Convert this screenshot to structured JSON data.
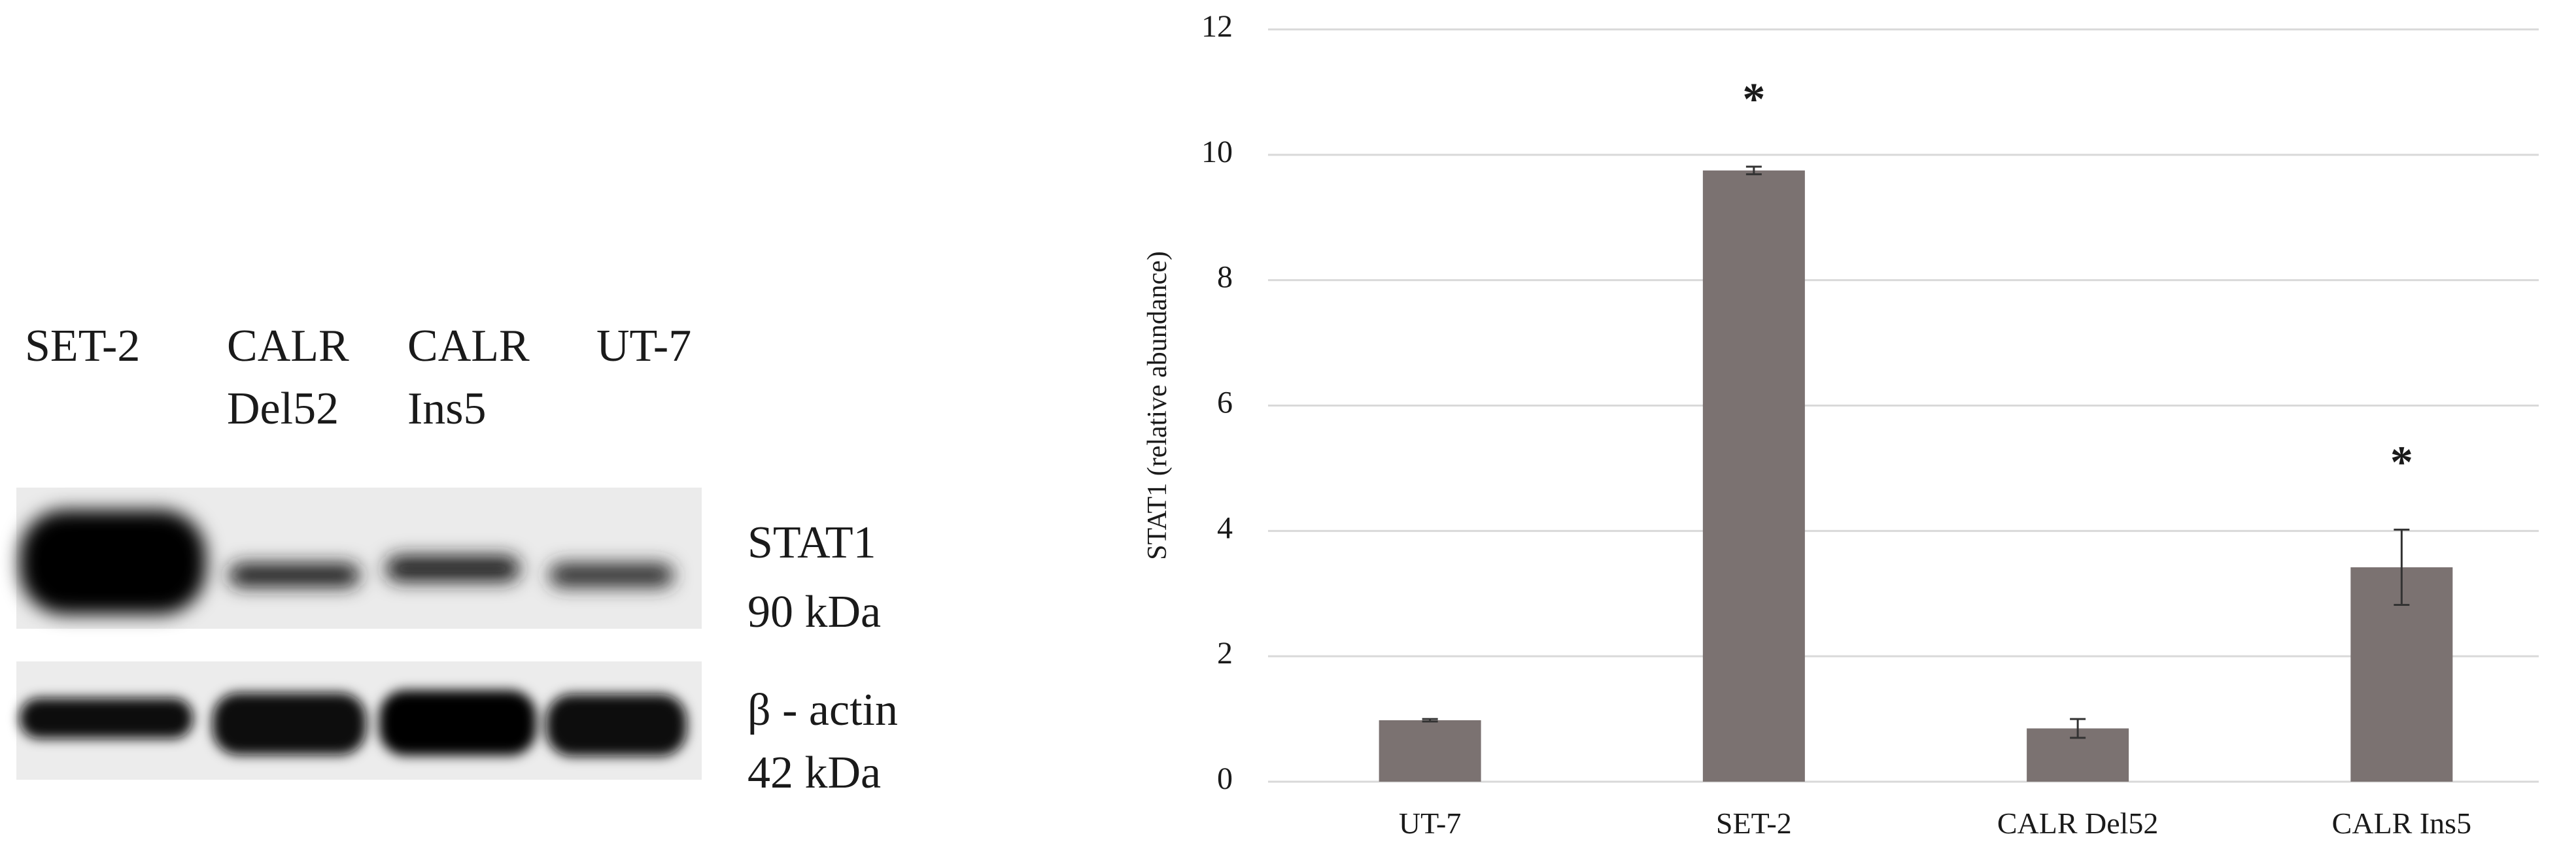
{
  "blot": {
    "lanes": [
      [
        "SET-2"
      ],
      [
        "CALR",
        "Del52"
      ],
      [
        "CALR",
        "Ins5"
      ],
      [
        "UT-7"
      ]
    ],
    "bands": [
      [
        "STAT1",
        "90 kDa"
      ],
      [
        "β - actin",
        "42 kDa"
      ]
    ]
  },
  "chart_data": {
    "type": "bar",
    "ylabel": "STAT1 (relative abundance)",
    "categories": [
      "UT-7",
      "SET-2",
      "CALR Del52",
      "CALR Ins5"
    ],
    "values": [
      0.98,
      9.75,
      0.85,
      3.42
    ],
    "errors": [
      0.02,
      0.06,
      0.15,
      0.6
    ],
    "annotations": [
      "",
      "*",
      "",
      "*"
    ],
    "color": "#7b7271",
    "ylim": [
      0,
      12
    ],
    "yticks": [
      0,
      2,
      4,
      6,
      8,
      10,
      12
    ],
    "grid": true
  }
}
